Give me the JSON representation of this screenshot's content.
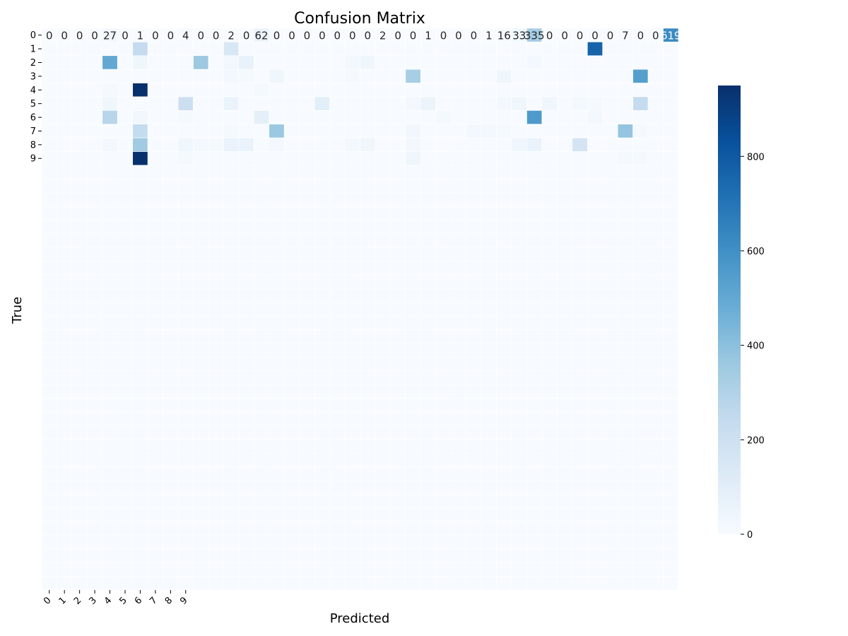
{
  "chart_data": {
    "type": "heatmap",
    "title": "Confusion Matrix",
    "xlabel": "Predicted",
    "ylabel": "True",
    "x_tick_labels": [
      "0",
      "1",
      "2",
      "3",
      "4",
      "5",
      "6",
      "7",
      "8",
      "9"
    ],
    "y_tick_labels": [
      "0",
      "1",
      "2",
      "3",
      "4",
      "5",
      "6",
      "7",
      "8",
      "9"
    ],
    "grid_columns": 42,
    "grid_rows": 41,
    "colormap": "Blues",
    "color_min": "#f7fbff",
    "color_max": "#08306b",
    "colorbar": {
      "min": 0,
      "max": 950,
      "ticks": [
        0,
        200,
        400,
        600,
        800
      ]
    },
    "row0_annotations": [
      "0",
      "0",
      "0",
      "0",
      "27",
      "0",
      "1",
      "0",
      "0",
      "4",
      "0",
      "0",
      "2",
      "0",
      "62",
      "0",
      "0",
      "0",
      "0",
      "0",
      "0",
      "0",
      "2",
      "0",
      "0",
      "1",
      "0",
      "0",
      "0",
      "1",
      "16",
      "33",
      "335",
      "0",
      "0",
      "0",
      "0",
      "0",
      "7",
      "0",
      "0",
      "619"
    ],
    "cells": [
      {
        "row": 0,
        "col": 0,
        "value": 0
      },
      {
        "row": 0,
        "col": 1,
        "value": 0
      },
      {
        "row": 0,
        "col": 2,
        "value": 0
      },
      {
        "row": 0,
        "col": 3,
        "value": 0
      },
      {
        "row": 0,
        "col": 4,
        "value": 27
      },
      {
        "row": 0,
        "col": 5,
        "value": 0
      },
      {
        "row": 0,
        "col": 6,
        "value": 1
      },
      {
        "row": 0,
        "col": 7,
        "value": 0
      },
      {
        "row": 0,
        "col": 8,
        "value": 0
      },
      {
        "row": 0,
        "col": 9,
        "value": 4
      },
      {
        "row": 0,
        "col": 10,
        "value": 0
      },
      {
        "row": 0,
        "col": 11,
        "value": 0
      },
      {
        "row": 0,
        "col": 12,
        "value": 2
      },
      {
        "row": 0,
        "col": 13,
        "value": 0
      },
      {
        "row": 0,
        "col": 14,
        "value": 62
      },
      {
        "row": 0,
        "col": 15,
        "value": 0
      },
      {
        "row": 0,
        "col": 16,
        "value": 0
      },
      {
        "row": 0,
        "col": 17,
        "value": 0
      },
      {
        "row": 0,
        "col": 18,
        "value": 0
      },
      {
        "row": 0,
        "col": 19,
        "value": 0
      },
      {
        "row": 0,
        "col": 20,
        "value": 0
      },
      {
        "row": 0,
        "col": 21,
        "value": 0
      },
      {
        "row": 0,
        "col": 22,
        "value": 2
      },
      {
        "row": 0,
        "col": 23,
        "value": 0
      },
      {
        "row": 0,
        "col": 24,
        "value": 0
      },
      {
        "row": 0,
        "col": 25,
        "value": 1
      },
      {
        "row": 0,
        "col": 26,
        "value": 0
      },
      {
        "row": 0,
        "col": 27,
        "value": 0
      },
      {
        "row": 0,
        "col": 28,
        "value": 0
      },
      {
        "row": 0,
        "col": 29,
        "value": 1
      },
      {
        "row": 0,
        "col": 30,
        "value": 16
      },
      {
        "row": 0,
        "col": 31,
        "value": 33
      },
      {
        "row": 0,
        "col": 32,
        "value": 335
      },
      {
        "row": 0,
        "col": 33,
        "value": 0
      },
      {
        "row": 0,
        "col": 34,
        "value": 0
      },
      {
        "row": 0,
        "col": 35,
        "value": 0
      },
      {
        "row": 0,
        "col": 36,
        "value": 0
      },
      {
        "row": 0,
        "col": 37,
        "value": 0
      },
      {
        "row": 0,
        "col": 38,
        "value": 7
      },
      {
        "row": 0,
        "col": 39,
        "value": 0
      },
      {
        "row": 0,
        "col": 40,
        "value": 0
      },
      {
        "row": 0,
        "col": 41,
        "value": 619
      },
      {
        "row": 1,
        "col": 6,
        "value": 240
      },
      {
        "row": 1,
        "col": 12,
        "value": 150
      },
      {
        "row": 1,
        "col": 36,
        "value": 760
      },
      {
        "row": 2,
        "col": 4,
        "value": 500
      },
      {
        "row": 2,
        "col": 6,
        "value": 40
      },
      {
        "row": 2,
        "col": 10,
        "value": 360
      },
      {
        "row": 2,
        "col": 12,
        "value": 30
      },
      {
        "row": 2,
        "col": 13,
        "value": 70
      },
      {
        "row": 2,
        "col": 20,
        "value": 25
      },
      {
        "row": 2,
        "col": 21,
        "value": 40
      },
      {
        "row": 2,
        "col": 32,
        "value": 25
      },
      {
        "row": 3,
        "col": 12,
        "value": 20
      },
      {
        "row": 3,
        "col": 13,
        "value": 15
      },
      {
        "row": 3,
        "col": 15,
        "value": 40
      },
      {
        "row": 3,
        "col": 20,
        "value": 15
      },
      {
        "row": 3,
        "col": 24,
        "value": 330
      },
      {
        "row": 3,
        "col": 30,
        "value": 40
      },
      {
        "row": 3,
        "col": 39,
        "value": 540
      },
      {
        "row": 4,
        "col": 4,
        "value": 15
      },
      {
        "row": 4,
        "col": 6,
        "value": 950
      },
      {
        "row": 4,
        "col": 14,
        "value": 15
      },
      {
        "row": 5,
        "col": 4,
        "value": 40
      },
      {
        "row": 5,
        "col": 9,
        "value": 210
      },
      {
        "row": 5,
        "col": 12,
        "value": 60
      },
      {
        "row": 5,
        "col": 18,
        "value": 100
      },
      {
        "row": 5,
        "col": 24,
        "value": 25
      },
      {
        "row": 5,
        "col": 25,
        "value": 55
      },
      {
        "row": 5,
        "col": 30,
        "value": 20
      },
      {
        "row": 5,
        "col": 31,
        "value": 40
      },
      {
        "row": 5,
        "col": 33,
        "value": 40
      },
      {
        "row": 5,
        "col": 35,
        "value": 25
      },
      {
        "row": 5,
        "col": 36,
        "value": 15
      },
      {
        "row": 5,
        "col": 39,
        "value": 240
      },
      {
        "row": 6,
        "col": 4,
        "value": 280
      },
      {
        "row": 6,
        "col": 6,
        "value": 30
      },
      {
        "row": 6,
        "col": 9,
        "value": 15
      },
      {
        "row": 6,
        "col": 14,
        "value": 90
      },
      {
        "row": 6,
        "col": 26,
        "value": 15
      },
      {
        "row": 6,
        "col": 32,
        "value": 560
      },
      {
        "row": 6,
        "col": 36,
        "value": 20
      },
      {
        "row": 7,
        "col": 6,
        "value": 240
      },
      {
        "row": 7,
        "col": 12,
        "value": 15
      },
      {
        "row": 7,
        "col": 15,
        "value": 360
      },
      {
        "row": 7,
        "col": 24,
        "value": 30
      },
      {
        "row": 7,
        "col": 28,
        "value": 20
      },
      {
        "row": 7,
        "col": 29,
        "value": 25
      },
      {
        "row": 7,
        "col": 30,
        "value": 15
      },
      {
        "row": 7,
        "col": 38,
        "value": 380
      },
      {
        "row": 7,
        "col": 39,
        "value": 15
      },
      {
        "row": 8,
        "col": 4,
        "value": 25
      },
      {
        "row": 8,
        "col": 6,
        "value": 350
      },
      {
        "row": 8,
        "col": 9,
        "value": 40
      },
      {
        "row": 8,
        "col": 10,
        "value": 20
      },
      {
        "row": 8,
        "col": 11,
        "value": 15
      },
      {
        "row": 8,
        "col": 12,
        "value": 60
      },
      {
        "row": 8,
        "col": 13,
        "value": 60
      },
      {
        "row": 8,
        "col": 15,
        "value": 20
      },
      {
        "row": 8,
        "col": 20,
        "value": 25
      },
      {
        "row": 8,
        "col": 21,
        "value": 40
      },
      {
        "row": 8,
        "col": 24,
        "value": 25
      },
      {
        "row": 8,
        "col": 31,
        "value": 40
      },
      {
        "row": 8,
        "col": 32,
        "value": 60
      },
      {
        "row": 8,
        "col": 35,
        "value": 170
      },
      {
        "row": 9,
        "col": 6,
        "value": 950
      },
      {
        "row": 9,
        "col": 9,
        "value": 15
      },
      {
        "row": 9,
        "col": 24,
        "value": 40
      },
      {
        "row": 9,
        "col": 38,
        "value": 15
      },
      {
        "row": 9,
        "col": 39,
        "value": 15
      }
    ]
  }
}
